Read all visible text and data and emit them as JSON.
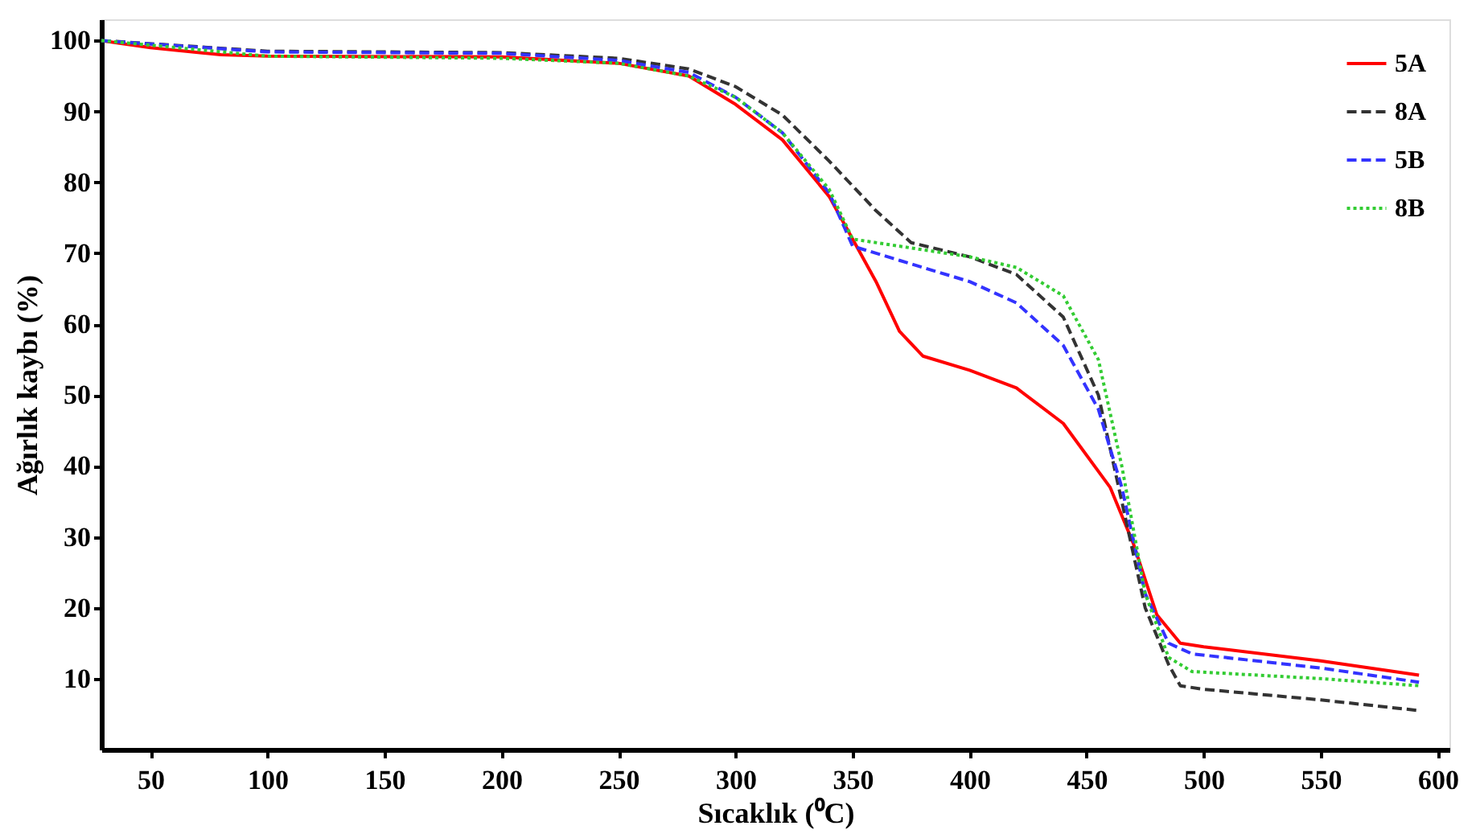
{
  "chart_data": {
    "type": "line",
    "xlabel": "Sıcaklık (⁰C)",
    "ylabel": "Ağırlık kaybı (%)",
    "xlim": [
      29,
      605
    ],
    "xticks": [
      50,
      100,
      150,
      200,
      250,
      300,
      350,
      400,
      450,
      500,
      550,
      600
    ],
    "ylim": [
      0,
      103
    ],
    "yticks": [
      10,
      20,
      30,
      40,
      50,
      60,
      70,
      80,
      90,
      100
    ],
    "grid": false,
    "legend": "top right",
    "marker": "none",
    "series": [
      {
        "name": "5A",
        "color": "#ff0000",
        "line_style": "solid",
        "x": [
          29,
          50,
          80,
          100,
          200,
          250,
          280,
          300,
          320,
          340,
          350,
          360,
          370,
          380,
          400,
          420,
          440,
          460,
          470,
          480,
          490,
          500,
          550,
          592
        ],
        "values": [
          100,
          99,
          98,
          97.8,
          97.7,
          96.8,
          95,
          91,
          86,
          78,
          72,
          66,
          59,
          55.5,
          53.5,
          51,
          46,
          37,
          29,
          19,
          15,
          14.5,
          12.5,
          10.5
        ]
      },
      {
        "name": "8A",
        "color": "#333333",
        "line_style": "dashed",
        "x": [
          29,
          100,
          200,
          250,
          280,
          300,
          320,
          340,
          360,
          375,
          400,
          420,
          440,
          455,
          465,
          475,
          485,
          490,
          500,
          550,
          592
        ],
        "values": [
          100,
          98.5,
          98.3,
          97.5,
          96,
          93.5,
          89.5,
          83,
          76,
          71.5,
          69.5,
          67,
          61,
          50,
          35,
          20,
          12,
          9,
          8.5,
          7,
          5.5
        ]
      },
      {
        "name": "5B",
        "color": "#3333ff",
        "line_style": "dashed",
        "x": [
          29,
          100,
          200,
          250,
          280,
          300,
          320,
          340,
          350,
          370,
          400,
          420,
          440,
          455,
          465,
          475,
          485,
          495,
          550,
          592
        ],
        "values": [
          100,
          98.4,
          98.2,
          97.2,
          95.5,
          92,
          87,
          78.5,
          71,
          69,
          66,
          63,
          57,
          48,
          37,
          22,
          15,
          13.5,
          11.5,
          9.5
        ]
      },
      {
        "name": "8B",
        "color": "#33cc33",
        "line_style": "dotted",
        "x": [
          29,
          100,
          200,
          250,
          280,
          300,
          320,
          340,
          350,
          370,
          400,
          420,
          440,
          455,
          465,
          475,
          485,
          495,
          550,
          592
        ],
        "values": [
          100,
          97.8,
          97.5,
          96.8,
          95,
          92,
          87,
          79,
          72,
          71,
          69.5,
          68,
          64,
          55,
          40,
          22,
          13,
          11,
          10,
          9
        ]
      }
    ]
  }
}
